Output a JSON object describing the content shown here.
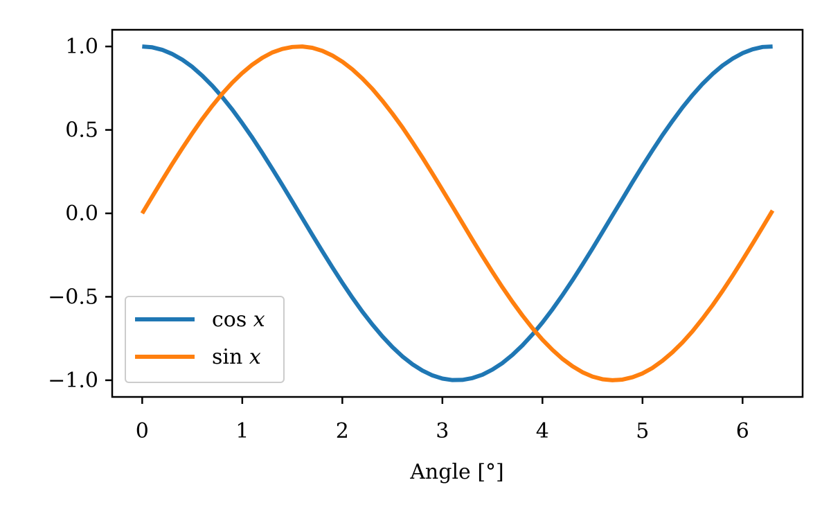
{
  "chart_data": {
    "type": "line",
    "title": "",
    "xlabel": "Angle [°]",
    "ylabel": "",
    "xlim": [
      -0.3,
      6.6
    ],
    "ylim": [
      -1.1,
      1.1
    ],
    "xticks": [
      0,
      1,
      2,
      3,
      4,
      5,
      6
    ],
    "xtick_labels": [
      "0",
      "1",
      "2",
      "3",
      "4",
      "5",
      "6"
    ],
    "yticks": [
      1.0,
      0.5,
      0.0,
      -0.5,
      -1.0
    ],
    "ytick_labels": [
      "1.0",
      "0.5",
      "0.0",
      "−0.5",
      "−1.0"
    ],
    "grid": false,
    "legend_position": "lower-left",
    "x": [
      0.0,
      0.1,
      0.2,
      0.3,
      0.4,
      0.5,
      0.6,
      0.7,
      0.8,
      0.9,
      1.0,
      1.1,
      1.2,
      1.3,
      1.4,
      1.5,
      1.6,
      1.7,
      1.8,
      1.9,
      2.0,
      2.1,
      2.2,
      2.3,
      2.4,
      2.5,
      2.6,
      2.7,
      2.8,
      2.9,
      3.0,
      3.1,
      3.2,
      3.3,
      3.4,
      3.5,
      3.6,
      3.7,
      3.8,
      3.9,
      4.0,
      4.1,
      4.2,
      4.3,
      4.4,
      4.5,
      4.6,
      4.7,
      4.8,
      4.9,
      5.0,
      5.1,
      5.2,
      5.3,
      5.4,
      5.5,
      5.6,
      5.7,
      5.8,
      5.9,
      6.0,
      6.1,
      6.2,
      6.3
    ],
    "series": [
      {
        "name": "cos x",
        "legend_func": "cos",
        "legend_var": "x",
        "color": "#1f77b4",
        "values": [
          1.0,
          0.995,
          0.98,
          0.955,
          0.921,
          0.878,
          0.825,
          0.765,
          0.697,
          0.622,
          0.54,
          0.454,
          0.362,
          0.267,
          0.17,
          0.071,
          -0.029,
          -0.129,
          -0.227,
          -0.323,
          -0.416,
          -0.505,
          -0.589,
          -0.666,
          -0.737,
          -0.801,
          -0.857,
          -0.904,
          -0.942,
          -0.971,
          -0.99,
          -0.999,
          -0.998,
          -0.987,
          -0.967,
          -0.936,
          -0.897,
          -0.848,
          -0.791,
          -0.726,
          -0.654,
          -0.575,
          -0.49,
          -0.401,
          -0.307,
          -0.211,
          -0.112,
          -0.012,
          0.087,
          0.187,
          0.284,
          0.378,
          0.469,
          0.554,
          0.635,
          0.709,
          0.776,
          0.835,
          0.886,
          0.927,
          0.96,
          0.983,
          0.997,
          1.0
        ]
      },
      {
        "name": "sin x",
        "legend_func": "sin",
        "legend_var": "x",
        "color": "#ff7f0e",
        "values": [
          0.0,
          0.1,
          0.199,
          0.296,
          0.389,
          0.479,
          0.565,
          0.644,
          0.717,
          0.783,
          0.841,
          0.891,
          0.932,
          0.964,
          0.985,
          0.997,
          1.0,
          0.992,
          0.974,
          0.946,
          0.909,
          0.863,
          0.808,
          0.746,
          0.675,
          0.598,
          0.516,
          0.427,
          0.335,
          0.239,
          0.141,
          0.042,
          -0.058,
          -0.158,
          -0.256,
          -0.351,
          -0.443,
          -0.53,
          -0.612,
          -0.688,
          -0.757,
          -0.818,
          -0.872,
          -0.916,
          -0.952,
          -0.978,
          -0.994,
          -1.0,
          -0.996,
          -0.982,
          -0.959,
          -0.926,
          -0.883,
          -0.832,
          -0.773,
          -0.706,
          -0.631,
          -0.551,
          -0.465,
          -0.374,
          -0.279,
          -0.182,
          -0.083,
          0.017
        ]
      }
    ]
  }
}
